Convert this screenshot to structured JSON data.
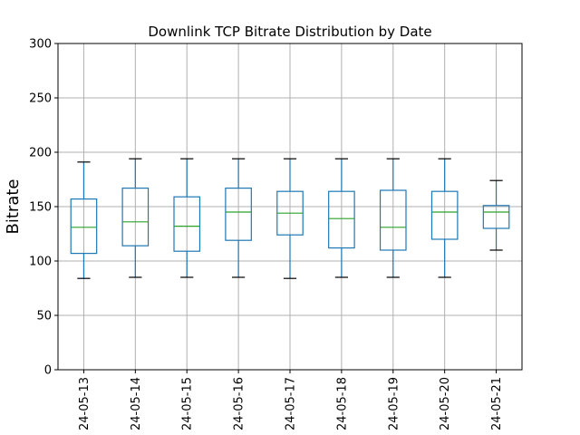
{
  "chart_data": {
    "type": "box",
    "title": "Downlink TCP Bitrate Distribution by Date",
    "xlabel": "",
    "ylabel": "Bitrate",
    "ylim": [
      0,
      300
    ],
    "yticks": [
      0,
      50,
      100,
      150,
      200,
      250,
      300
    ],
    "grid": true,
    "categories": [
      "24-05-13",
      "24-05-14",
      "24-05-15",
      "24-05-16",
      "24-05-17",
      "24-05-18",
      "24-05-19",
      "24-05-20",
      "24-05-21"
    ],
    "boxes": [
      {
        "whislo": 84,
        "q1": 107,
        "med": 131,
        "q3": 157,
        "whishi": 191
      },
      {
        "whislo": 85,
        "q1": 114,
        "med": 136,
        "q3": 167,
        "whishi": 194
      },
      {
        "whislo": 85,
        "q1": 109,
        "med": 132,
        "q3": 159,
        "whishi": 194
      },
      {
        "whislo": 85,
        "q1": 119,
        "med": 145,
        "q3": 167,
        "whishi": 194
      },
      {
        "whislo": 84,
        "q1": 124,
        "med": 144,
        "q3": 164,
        "whishi": 194
      },
      {
        "whislo": 85,
        "q1": 112,
        "med": 139,
        "q3": 164,
        "whishi": 194
      },
      {
        "whislo": 85,
        "q1": 110,
        "med": 131,
        "q3": 165,
        "whishi": 194
      },
      {
        "whislo": 85,
        "q1": 120,
        "med": 145,
        "q3": 164,
        "whishi": 194
      },
      {
        "whislo": 110,
        "q1": 130,
        "med": 145,
        "q3": 151,
        "whishi": 174
      }
    ]
  }
}
